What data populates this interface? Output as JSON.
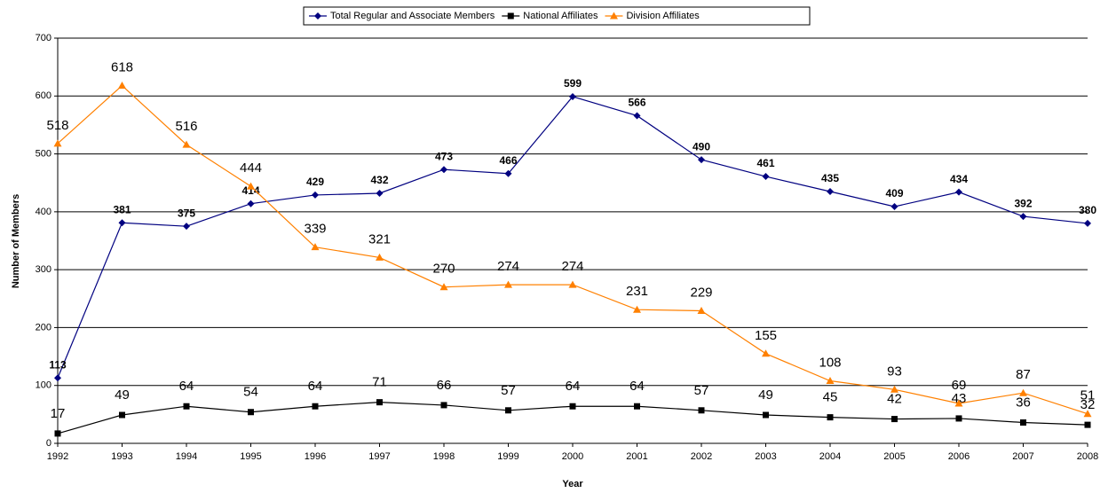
{
  "chart_data": {
    "type": "line",
    "categories": [
      "1992",
      "1993",
      "1994",
      "1995",
      "1996",
      "1997",
      "1998",
      "1999",
      "2000",
      "2001",
      "2002",
      "2003",
      "2004",
      "2005",
      "2006",
      "2007",
      "2008"
    ],
    "series": [
      {
        "name": "Total Regular and Associate Members",
        "color": "#000080",
        "marker": "diamond",
        "values": [
          113,
          381,
          375,
          414,
          429,
          432,
          473,
          466,
          599,
          566,
          490,
          461,
          435,
          409,
          434,
          392,
          380
        ]
      },
      {
        "name": "National Affiliates",
        "color": "#000000",
        "marker": "square",
        "values": [
          17,
          49,
          64,
          54,
          64,
          71,
          66,
          57,
          64,
          64,
          57,
          49,
          45,
          42,
          43,
          36,
          32
        ]
      },
      {
        "name": "Division Affiliates",
        "color": "#ff8000",
        "marker": "triangle",
        "values": [
          518,
          618,
          516,
          444,
          339,
          321,
          270,
          274,
          274,
          231,
          229,
          155,
          108,
          93,
          69,
          87,
          51
        ]
      }
    ],
    "x_label": "Year",
    "y_label": "Number of Members",
    "ylim": [
      0,
      700
    ],
    "yticks": [
      0,
      100,
      200,
      300,
      400,
      500,
      600,
      700
    ],
    "grid": true,
    "legend": "top"
  }
}
